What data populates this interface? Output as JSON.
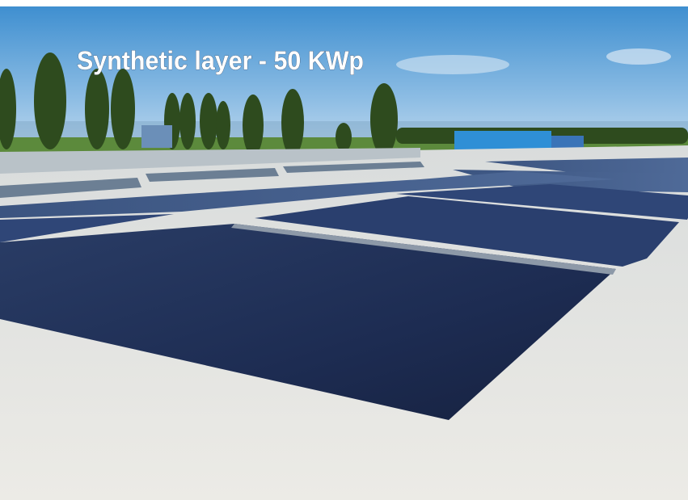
{
  "caption": "Synthetic layer - 50 KWp"
}
